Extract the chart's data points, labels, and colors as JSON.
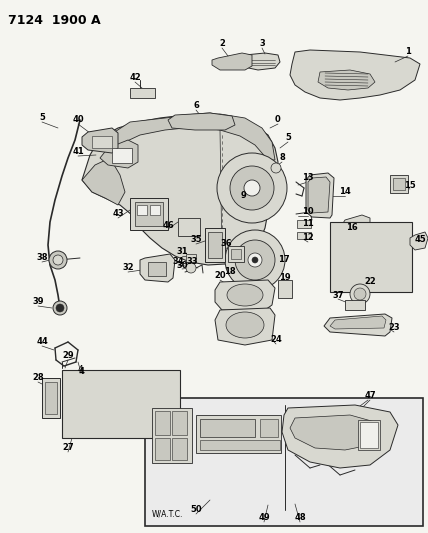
{
  "title": "7124  1900 A",
  "bg_color": "#f5f5f0",
  "fig_width": 4.28,
  "fig_height": 5.33,
  "dpi": 100,
  "line_color": "#2a2a2a",
  "fill_light": "#d8d8d0",
  "fill_med": "#c8c8c0",
  "fill_dark": "#b0b0a8",
  "white": "#f0f0ec"
}
